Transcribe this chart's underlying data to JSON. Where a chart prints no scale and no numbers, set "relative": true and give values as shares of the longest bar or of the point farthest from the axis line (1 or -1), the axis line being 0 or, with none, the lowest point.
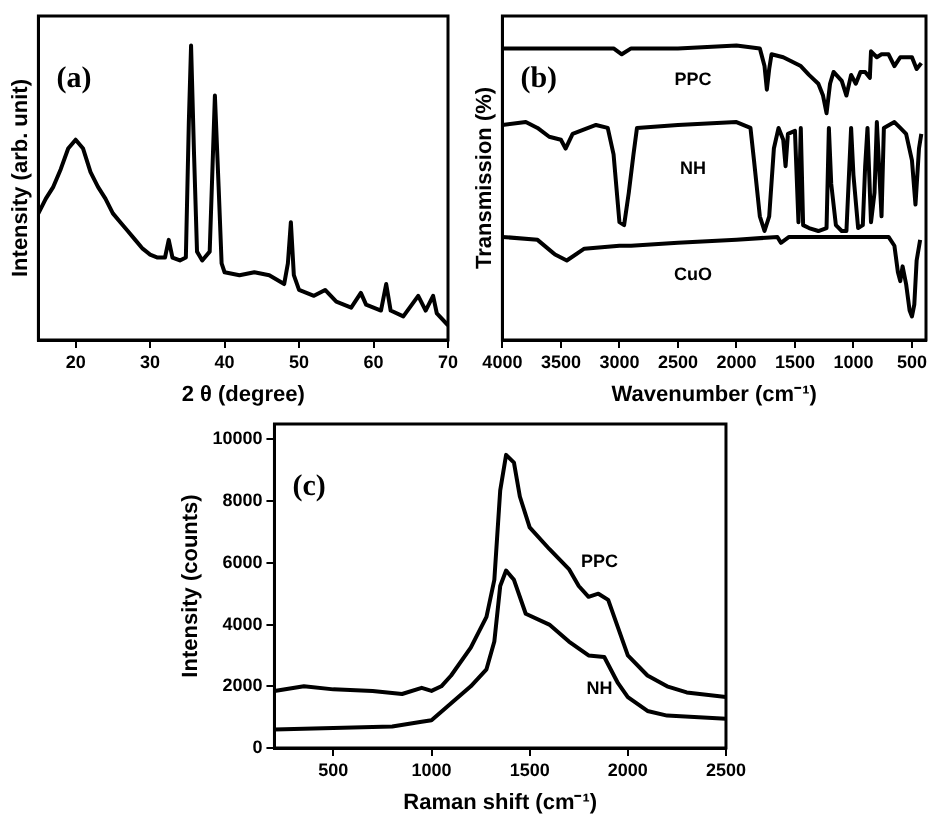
{
  "chart_data": [
    {
      "type": "line",
      "relative": true,
      "xlabel": "2 θ (degree)",
      "ylabel": "Intensity (arb. unit)",
      "annotations": [
        "(a)"
      ],
      "xlim": [
        15,
        70
      ],
      "xticks": [
        20,
        30,
        40,
        50,
        60,
        70
      ],
      "tick_labels": "x",
      "x": [
        15,
        16,
        17,
        18,
        19,
        20,
        21,
        22,
        23,
        24,
        25,
        26,
        27,
        28,
        29,
        30,
        31,
        32,
        32.5,
        33,
        34,
        34.8,
        35.2,
        35.5,
        35.9,
        36.3,
        37,
        38,
        38.7,
        39.2,
        39.6,
        40,
        42,
        44,
        46,
        48,
        48.5,
        48.9,
        49.3,
        50,
        52,
        53.5,
        55,
        57,
        58.3,
        59,
        61,
        61.7,
        62.3,
        64,
        66,
        67,
        68,
        68.5,
        70
      ],
      "series": [
        {
          "color": "#000000",
          "values": [
            0.43,
            0.48,
            0.52,
            0.58,
            0.65,
            0.68,
            0.65,
            0.57,
            0.52,
            0.48,
            0.43,
            0.4,
            0.37,
            0.34,
            0.31,
            0.29,
            0.28,
            0.28,
            0.34,
            0.28,
            0.27,
            0.28,
            0.74,
            1.0,
            0.63,
            0.3,
            0.27,
            0.3,
            0.83,
            0.52,
            0.26,
            0.23,
            0.22,
            0.23,
            0.22,
            0.19,
            0.26,
            0.4,
            0.22,
            0.17,
            0.15,
            0.17,
            0.13,
            0.11,
            0.16,
            0.12,
            0.1,
            0.19,
            0.1,
            0.08,
            0.15,
            0.1,
            0.15,
            0.09,
            0.05
          ]
        }
      ]
    },
    {
      "type": "line",
      "relative": true,
      "xlabel": "Wavenumber (cm⁻¹)",
      "ylabel": "Transmission (%)",
      "annotations": [
        "(b)"
      ],
      "xlim": [
        4000,
        380
      ],
      "xticks": [
        4000,
        3500,
        3000,
        2500,
        2000,
        1500,
        1000,
        500
      ],
      "tick_labels": "x",
      "series": [
        {
          "name": "PPC",
          "color": "#000000",
          "x": [
            4000,
            3500,
            3050,
            2980,
            2900,
            2500,
            2000,
            1800,
            1760,
            1740,
            1720,
            1700,
            1600,
            1450,
            1380,
            1300,
            1260,
            1230,
            1200,
            1170,
            1100,
            1060,
            1020,
            980,
            940,
            900,
            860,
            850,
            800,
            760,
            700,
            650,
            600,
            500,
            460,
            420
          ],
          "values": [
            0.99,
            0.99,
            0.99,
            0.97,
            0.99,
            0.99,
            1.0,
            0.99,
            0.93,
            0.85,
            0.92,
            0.97,
            0.96,
            0.93,
            0.9,
            0.87,
            0.83,
            0.77,
            0.87,
            0.91,
            0.88,
            0.83,
            0.9,
            0.87,
            0.91,
            0.91,
            0.89,
            0.98,
            0.96,
            0.97,
            0.97,
            0.93,
            0.96,
            0.96,
            0.92,
            0.94
          ]
        },
        {
          "name": "NH",
          "color": "#000000",
          "x": [
            4000,
            3800,
            3700,
            3600,
            3500,
            3460,
            3400,
            3200,
            3100,
            3050,
            3000,
            2960,
            2920,
            2880,
            2850,
            2500,
            2000,
            1880,
            1850,
            1800,
            1760,
            1720,
            1680,
            1640,
            1600,
            1580,
            1560,
            1500,
            1470,
            1450,
            1430,
            1380,
            1300,
            1230,
            1210,
            1190,
            1150,
            1100,
            1060,
            1020,
            1000,
            960,
            920,
            900,
            880,
            850,
            820,
            800,
            760,
            740,
            650,
            600,
            550,
            500,
            470,
            440,
            420
          ],
          "values": [
            0.73,
            0.74,
            0.72,
            0.69,
            0.68,
            0.65,
            0.7,
            0.73,
            0.72,
            0.63,
            0.4,
            0.39,
            0.5,
            0.63,
            0.72,
            0.73,
            0.74,
            0.72,
            0.61,
            0.42,
            0.37,
            0.42,
            0.65,
            0.72,
            0.68,
            0.59,
            0.7,
            0.71,
            0.4,
            0.72,
            0.39,
            0.38,
            0.37,
            0.38,
            0.72,
            0.53,
            0.39,
            0.37,
            0.37,
            0.72,
            0.56,
            0.38,
            0.39,
            0.59,
            0.72,
            0.4,
            0.5,
            0.74,
            0.42,
            0.72,
            0.74,
            0.72,
            0.7,
            0.61,
            0.46,
            0.65,
            0.7
          ]
        },
        {
          "name": "CuO",
          "color": "#000000",
          "x": [
            4000,
            3700,
            3550,
            3450,
            3300,
            3000,
            2900,
            2500,
            2000,
            1650,
            1620,
            1550,
            1000,
            700,
            650,
            620,
            600,
            580,
            550,
            520,
            500,
            480,
            460,
            430
          ],
          "values": [
            0.35,
            0.34,
            0.29,
            0.27,
            0.31,
            0.32,
            0.32,
            0.33,
            0.34,
            0.35,
            0.33,
            0.35,
            0.35,
            0.35,
            0.32,
            0.23,
            0.2,
            0.25,
            0.19,
            0.1,
            0.08,
            0.12,
            0.27,
            0.34
          ]
        }
      ]
    },
    {
      "type": "line",
      "xlabel": "Raman shift (cm⁻¹)",
      "ylabel": "Intensity (counts)",
      "annotations": [
        "(c)"
      ],
      "xlim": [
        200,
        2500
      ],
      "xticks": [
        500,
        1000,
        1500,
        2000,
        2500
      ],
      "ylim": [
        0,
        10500
      ],
      "yticks": [
        0,
        2000,
        4000,
        6000,
        8000,
        10000
      ],
      "series": [
        {
          "name": "PPC",
          "color": "#000000",
          "x": [
            200,
            350,
            500,
            700,
            850,
            950,
            1000,
            1050,
            1100,
            1200,
            1280,
            1320,
            1350,
            1380,
            1420,
            1450,
            1500,
            1600,
            1700,
            1750,
            1800,
            1850,
            1900,
            1950,
            2000,
            2100,
            2200,
            2300,
            2500
          ],
          "values": [
            1850,
            2000,
            1900,
            1850,
            1750,
            1950,
            1850,
            2000,
            2350,
            3250,
            4250,
            5450,
            8350,
            9500,
            9250,
            8150,
            7150,
            6450,
            5800,
            5250,
            4900,
            5000,
            4800,
            3900,
            3000,
            2350,
            2000,
            1800,
            1650
          ]
        },
        {
          "name": "NH",
          "color": "#000000",
          "x": [
            200,
            500,
            800,
            950,
            1000,
            1100,
            1200,
            1280,
            1320,
            1350,
            1380,
            1420,
            1480,
            1600,
            1700,
            1800,
            1880,
            1950,
            2000,
            2100,
            2200,
            2500
          ],
          "values": [
            600,
            650,
            700,
            850,
            900,
            1450,
            2000,
            2550,
            3450,
            5250,
            5750,
            5450,
            4350,
            4000,
            3450,
            3000,
            2950,
            2100,
            1650,
            1200,
            1050,
            950
          ]
        }
      ]
    }
  ]
}
